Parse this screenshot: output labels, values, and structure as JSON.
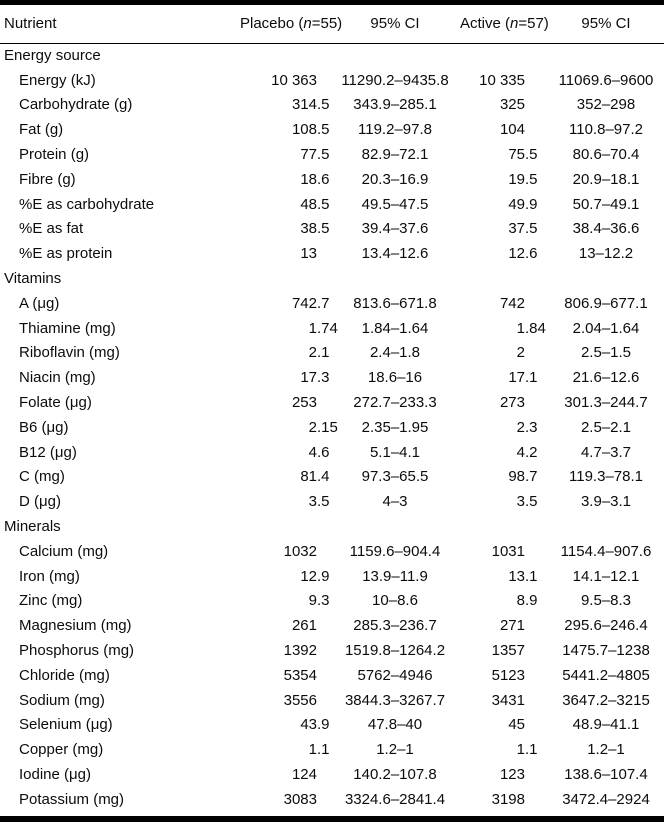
{
  "header": {
    "nutrient": "Nutrient",
    "placebo": {
      "pre": "Placebo (",
      "var": "n",
      "post": "=55)"
    },
    "placebo_ci": "95% CI",
    "active": {
      "pre": "Active (",
      "var": "n",
      "post": "=57)"
    },
    "active_ci": "95% CI"
  },
  "sections": [
    {
      "title": "Energy source",
      "rows": [
        {
          "label": "Energy (kJ)",
          "placebo": "10 363",
          "placebo_ci": "11290.2–9435.8",
          "active": "10 335",
          "active_ci": "11069.6–9600"
        },
        {
          "label": "Carbohydrate (g)",
          "placebo": "314.5",
          "placebo_ci": "343.9–285.1",
          "active": "325",
          "active_ci": "352–298"
        },
        {
          "label": "Fat (g)",
          "placebo": "108.5",
          "placebo_ci": "119.2–97.8",
          "active": "104",
          "active_ci": "110.8–97.2"
        },
        {
          "label": "Protein (g)",
          "placebo": "77.5",
          "placebo_ci": "82.9–72.1",
          "active": "75.5",
          "active_ci": "80.6–70.4"
        },
        {
          "label": "Fibre (g)",
          "placebo": "18.6",
          "placebo_ci": "20.3–16.9",
          "active": "19.5",
          "active_ci": "20.9–18.1"
        },
        {
          "label": "%E as carbohydrate",
          "placebo": "48.5",
          "placebo_ci": "49.5–47.5",
          "active": "49.9",
          "active_ci": "50.7–49.1"
        },
        {
          "label": "%E as fat",
          "placebo": "38.5",
          "placebo_ci": "39.4–37.6",
          "active": "37.5",
          "active_ci": "38.4–36.6"
        },
        {
          "label": "%E as protein",
          "placebo": "13",
          "placebo_ci": "13.4–12.6",
          "active": "12.6",
          "active_ci": "13–12.2"
        }
      ]
    },
    {
      "title": "Vitamins",
      "rows": [
        {
          "label": "A (μg)",
          "placebo": "742.7",
          "placebo_ci": "813.6–671.8",
          "active": "742",
          "active_ci": "806.9–677.1"
        },
        {
          "label": "Thiamine (mg)",
          "placebo": "1.74",
          "placebo_ci": "1.84–1.64",
          "active": "1.84",
          "active_ci": "2.04–1.64"
        },
        {
          "label": "Riboflavin (mg)",
          "placebo": "2.1",
          "placebo_ci": "2.4–1.8",
          "active": "2",
          "active_ci": "2.5–1.5"
        },
        {
          "label": "Niacin (mg)",
          "placebo": "17.3",
          "placebo_ci": "18.6–16",
          "active": "17.1",
          "active_ci": "21.6–12.6"
        },
        {
          "label": "Folate (μg)",
          "placebo": "253",
          "placebo_ci": "272.7–233.3",
          "active": "273",
          "active_ci": "301.3–244.7"
        },
        {
          "label": "B6 (μg)",
          "placebo": "2.15",
          "placebo_ci": "2.35–1.95",
          "active": "2.3",
          "active_ci": "2.5–2.1"
        },
        {
          "label": "B12 (μg)",
          "placebo": "4.6",
          "placebo_ci": "5.1–4.1",
          "active": "4.2",
          "active_ci": "4.7–3.7"
        },
        {
          "label": "C (mg)",
          "placebo": "81.4",
          "placebo_ci": "97.3–65.5",
          "active": "98.7",
          "active_ci": "119.3–78.1"
        },
        {
          "label": "D (μg)",
          "placebo": "3.5",
          "placebo_ci": "4–3",
          "active": "3.5",
          "active_ci": "3.9–3.1"
        }
      ]
    },
    {
      "title": "Minerals",
      "rows": [
        {
          "label": "Calcium (mg)",
          "placebo": "1032",
          "placebo_ci": "1159.6–904.4",
          "active": "1031",
          "active_ci": "1154.4–907.6"
        },
        {
          "label": "Iron (mg)",
          "placebo": "12.9",
          "placebo_ci": "13.9–11.9",
          "active": "13.1",
          "active_ci": "14.1–12.1"
        },
        {
          "label": "Zinc (mg)",
          "placebo": "9.3",
          "placebo_ci": "10–8.6",
          "active": "8.9",
          "active_ci": "9.5–8.3"
        },
        {
          "label": "Magnesium (mg)",
          "placebo": "261",
          "placebo_ci": "285.3–236.7",
          "active": "271",
          "active_ci": "295.6–246.4"
        },
        {
          "label": "Phosphorus (mg)",
          "placebo": "1392",
          "placebo_ci": "1519.8–1264.2",
          "active": "1357",
          "active_ci": "1475.7–1238"
        },
        {
          "label": "Chloride (mg)",
          "placebo": "5354",
          "placebo_ci": "5762–4946",
          "active": "5123",
          "active_ci": "5441.2–4805"
        },
        {
          "label": "Sodium (mg)",
          "placebo": "3556",
          "placebo_ci": "3844.3–3267.7",
          "active": "3431",
          "active_ci": "3647.2–3215"
        },
        {
          "label": "Selenium (μg)",
          "placebo": "43.9",
          "placebo_ci": "47.8–40",
          "active": "45",
          "active_ci": "48.9–41.1"
        },
        {
          "label": "Copper (mg)",
          "placebo": "1.1",
          "placebo_ci": "1.2–1",
          "active": "1.1",
          "active_ci": "1.2–1"
        },
        {
          "label": "Iodine (μg)",
          "placebo": "124",
          "placebo_ci": "140.2–107.8",
          "active": "123",
          "active_ci": "138.6–107.4"
        },
        {
          "label": "Potassium (mg)",
          "placebo": "3083",
          "placebo_ci": "3324.6–2841.4",
          "active": "3198",
          "active_ci": "3472.4–2924"
        }
      ]
    }
  ],
  "colors": {
    "text": "#0c0c0c",
    "rule": "#000000",
    "background": "#ffffff"
  }
}
